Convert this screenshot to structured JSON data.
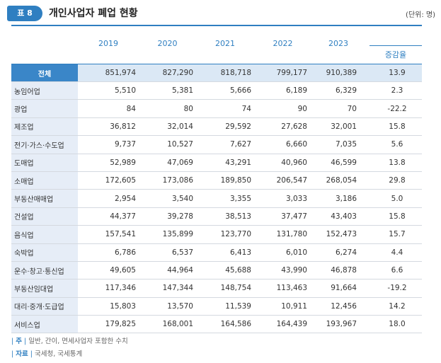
{
  "header": {
    "tag": "표 8",
    "title": "개인사업자 폐업 현황",
    "unit": "(단위: 명)"
  },
  "columns": [
    "2019",
    "2020",
    "2021",
    "2022",
    "2023",
    "증감율"
  ],
  "rows": [
    {
      "label": "전체",
      "values": [
        "851,974",
        "827,290",
        "818,718",
        "799,177",
        "910,389",
        "13.9"
      ]
    },
    {
      "label": "농임어업",
      "values": [
        "5,510",
        "5,381",
        "5,666",
        "6,189",
        "6,329",
        "2.3"
      ]
    },
    {
      "label": "광업",
      "values": [
        "84",
        "80",
        "74",
        "90",
        "70",
        "-22.2"
      ]
    },
    {
      "label": "제조업",
      "values": [
        "36,812",
        "32,014",
        "29,592",
        "27,628",
        "32,001",
        "15.8"
      ]
    },
    {
      "label": "전기·가스·수도업",
      "values": [
        "9,737",
        "10,527",
        "7,627",
        "6,660",
        "7,035",
        "5.6"
      ]
    },
    {
      "label": "도매업",
      "values": [
        "52,989",
        "47,069",
        "43,291",
        "40,960",
        "46,599",
        "13.8"
      ]
    },
    {
      "label": "소매업",
      "values": [
        "172,605",
        "173,086",
        "189,850",
        "206,547",
        "268,054",
        "29.8"
      ]
    },
    {
      "label": "부동산매매업",
      "values": [
        "2,954",
        "3,540",
        "3,355",
        "3,033",
        "3,186",
        "5.0"
      ]
    },
    {
      "label": "건설업",
      "values": [
        "44,377",
        "39,278",
        "38,513",
        "37,477",
        "43,403",
        "15.8"
      ]
    },
    {
      "label": "음식업",
      "values": [
        "157,541",
        "135,899",
        "123,770",
        "131,780",
        "152,473",
        "15.7"
      ]
    },
    {
      "label": "숙박업",
      "values": [
        "6,786",
        "6,537",
        "6,413",
        "6,010",
        "6,274",
        "4.4"
      ]
    },
    {
      "label": "운수·창고·통신업",
      "values": [
        "49,605",
        "44,964",
        "45,688",
        "43,990",
        "46,878",
        "6.6"
      ]
    },
    {
      "label": "부동산임대업",
      "values": [
        "117,346",
        "147,344",
        "148,754",
        "113,463",
        "91,664",
        "-19.2"
      ]
    },
    {
      "label": "대리·중개·도급업",
      "values": [
        "15,803",
        "13,570",
        "11,539",
        "10,911",
        "12,456",
        "14.2"
      ]
    },
    {
      "label": "서비스업",
      "values": [
        "179,825",
        "168,001",
        "164,586",
        "164,439",
        "193,967",
        "18.0"
      ]
    }
  ],
  "notes": {
    "note_label": "주",
    "note_text": "일반, 간이, 면세사업자 포함한 수치",
    "source_label": "자료",
    "source_text": "국세청, 국세통계"
  }
}
